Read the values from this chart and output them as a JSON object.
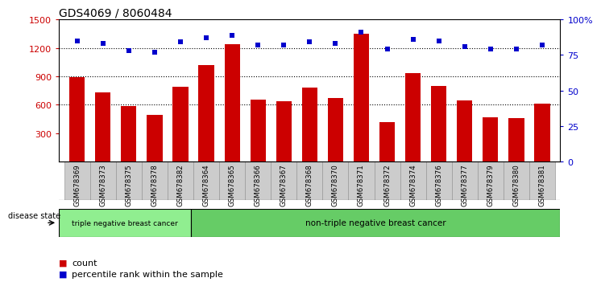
{
  "title": "GDS4069 / 8060484",
  "samples": [
    "GSM678369",
    "GSM678373",
    "GSM678375",
    "GSM678378",
    "GSM678382",
    "GSM678364",
    "GSM678365",
    "GSM678366",
    "GSM678367",
    "GSM678368",
    "GSM678370",
    "GSM678371",
    "GSM678372",
    "GSM678374",
    "GSM678376",
    "GSM678377",
    "GSM678379",
    "GSM678380",
    "GSM678381"
  ],
  "counts": [
    890,
    730,
    585,
    490,
    790,
    1020,
    1240,
    650,
    635,
    780,
    670,
    1350,
    415,
    930,
    795,
    645,
    465,
    455,
    610
  ],
  "percentiles": [
    85,
    83,
    78,
    77,
    84,
    87,
    89,
    82,
    82,
    84,
    83,
    91,
    79,
    86,
    85,
    81,
    79,
    79,
    82
  ],
  "triple_neg_count": 5,
  "bar_color": "#cc0000",
  "dot_color": "#0000cc",
  "ylim_left": [
    0,
    1500
  ],
  "ylim_right": [
    0,
    100
  ],
  "yticks_left": [
    300,
    600,
    900,
    1200,
    1500
  ],
  "yticks_right": [
    0,
    25,
    50,
    75,
    100
  ],
  "grid_values": [
    600,
    900,
    1200
  ],
  "disease_state_label": "disease state",
  "label_triple": "triple negative breast cancer",
  "label_non_triple": "non-triple negative breast cancer",
  "legend_count": "count",
  "legend_percentile": "percentile rank within the sample",
  "bg_triple": "#90EE90",
  "bg_non_triple": "#66CC66",
  "tick_label_color_left": "#cc0000",
  "tick_label_color_right": "#0000cc",
  "title_fontsize": 10,
  "bar_width": 0.6,
  "cell_bg": "#cccccc",
  "cell_edge": "#999999"
}
